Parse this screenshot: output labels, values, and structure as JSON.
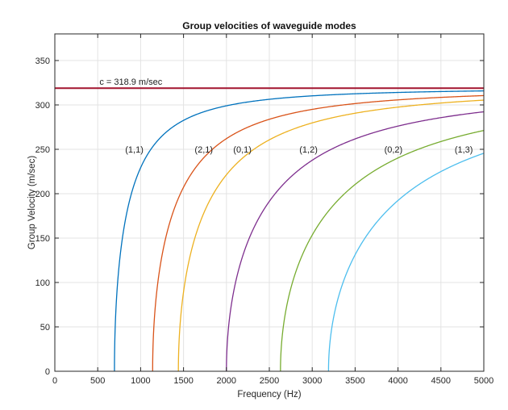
{
  "chart_data": {
    "type": "line",
    "title": "Group velocities of waveguide modes",
    "xlabel": "Frequency (Hz)",
    "ylabel": "Group Velocity (m/sec)",
    "xlim": [
      0,
      5000
    ],
    "ylim": [
      0,
      380
    ],
    "xticks": [
      0,
      500,
      1000,
      1500,
      2000,
      2500,
      3000,
      3500,
      4000,
      4500,
      5000
    ],
    "yticks": [
      0,
      50,
      100,
      150,
      200,
      250,
      300,
      350
    ],
    "grid": true,
    "reference_line": {
      "y": 318.9,
      "label": "c = 318.9 m/sec",
      "color": "#A2142F"
    },
    "series": [
      {
        "name": "(1,1)",
        "cutoff_hz": 695,
        "color": "#0072BD",
        "label_at": [
          820,
          250
        ]
      },
      {
        "name": "(2,1)",
        "cutoff_hz": 1140,
        "color": "#D95319",
        "label_at": [
          1630,
          250
        ]
      },
      {
        "name": "(0,1)",
        "cutoff_hz": 1440,
        "color": "#EDB120",
        "label_at": [
          2080,
          250
        ]
      },
      {
        "name": "(1,2)",
        "cutoff_hz": 2000,
        "color": "#7E2F8E",
        "label_at": [
          2850,
          250
        ]
      },
      {
        "name": "(0,2)",
        "cutoff_hz": 2630,
        "color": "#77AC30",
        "label_at": [
          3840,
          250
        ]
      },
      {
        "name": "(1,3)",
        "cutoff_hz": 3190,
        "color": "#4DBEEE",
        "label_at": [
          4660,
          250
        ]
      }
    ]
  }
}
